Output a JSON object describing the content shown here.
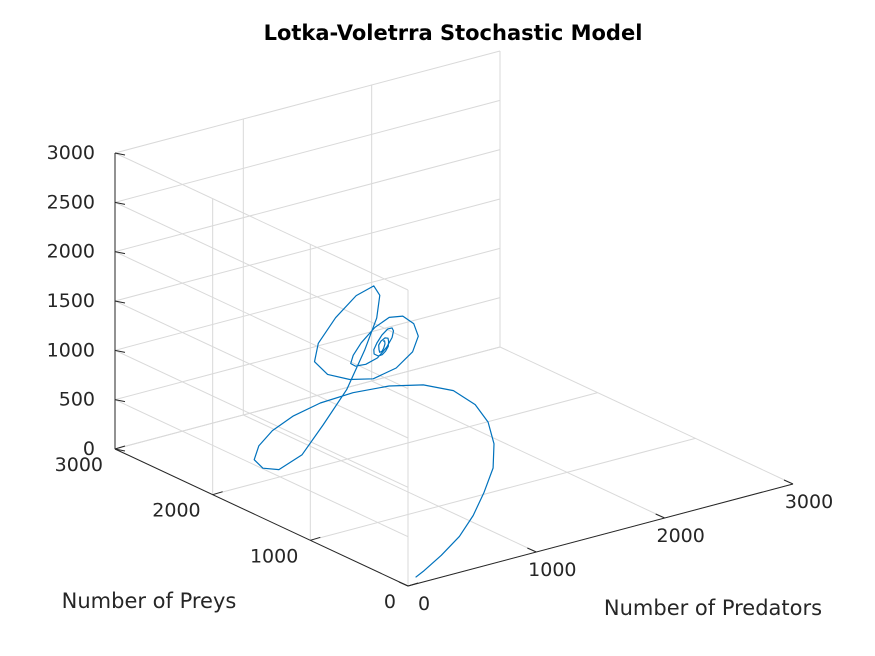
{
  "chart_data": {
    "type": "line",
    "projection": "3d",
    "title": "Lotka-Voletrra Stochastic Model",
    "xlabel": "Number of Predators",
    "ylabel": "Number of Preys",
    "zlabel": "",
    "xlim": [
      0,
      3000
    ],
    "ylim": [
      0,
      3000
    ],
    "zlim": [
      0,
      3000
    ],
    "x_ticks": [
      0,
      1000,
      2000,
      3000
    ],
    "y_ticks": [
      0,
      1000,
      2000,
      3000
    ],
    "z_ticks": [
      0,
      500,
      1000,
      1500,
      2000,
      2500,
      3000
    ],
    "grid": true,
    "color": "#0072BD",
    "series": [
      {
        "x": [
          120,
          210,
          450,
          720,
          980,
          1240,
          1500,
          1720,
          1880,
          1970,
          1990,
          1900,
          1740,
          1520,
          1280,
          1040,
          800,
          580,
          400,
          300,
          250,
          240,
          300,
          420,
          560,
          700,
          800,
          860,
          890,
          920,
          960,
          1060,
          1200,
          1320,
          1380,
          1400,
          1360,
          1260,
          1140,
          1040,
          980,
          960,
          990,
          1080,
          1190,
          1280,
          1330,
          1330,
          1280,
          1200,
          1120,
          1070,
          1060,
          1090,
          1150,
          1210,
          1250,
          1260,
          1230,
          1180,
          1140,
          1120,
          1130,
          1160,
          1190,
          1210,
          1205,
          1180,
          1160,
          1150,
          1160,
          1180,
          1190
        ],
        "y": [
          80,
          120,
          250,
          420,
          620,
          850,
          1100,
          1380,
          1650,
          1900,
          2150,
          2340,
          2480,
          2560,
          2580,
          2540,
          2440,
          2290,
          2100,
          1880,
          1650,
          1400,
          1260,
          1180,
          1180,
          1240,
          1340,
          1480,
          1700,
          1950,
          2180,
          2350,
          2400,
          2330,
          2170,
          1960,
          1740,
          1550,
          1440,
          1420,
          1480,
          1600,
          1780,
          1980,
          2150,
          2220,
          2180,
          2060,
          1900,
          1740,
          1620,
          1570,
          1600,
          1700,
          1830,
          1940,
          1990,
          1960,
          1880,
          1780,
          1700,
          1670,
          1690,
          1760,
          1840,
          1890,
          1880,
          1840,
          1790,
          1760,
          1760,
          1790,
          1820
        ],
        "z": [
          10,
          20,
          40,
          60,
          90,
          130,
          170,
          210,
          250,
          280,
          300,
          300,
          280,
          250,
          220,
          190,
          170,
          160,
          170,
          220,
          330,
          600,
          950,
          1300,
          1650,
          1900,
          2050,
          2060,
          1850,
          1500,
          1120,
          820,
          620,
          560,
          620,
          820,
          1100,
          1380,
          1600,
          1720,
          1700,
          1550,
          1300,
          1050,
          850,
          760,
          780,
          900,
          1100,
          1300,
          1450,
          1520,
          1500,
          1380,
          1220,
          1080,
          1000,
          990,
          1050,
          1150,
          1250,
          1320,
          1340,
          1300,
          1220,
          1150,
          1110,
          1110,
          1150,
          1200,
          1240,
          1250,
          1230
        ]
      }
    ]
  }
}
